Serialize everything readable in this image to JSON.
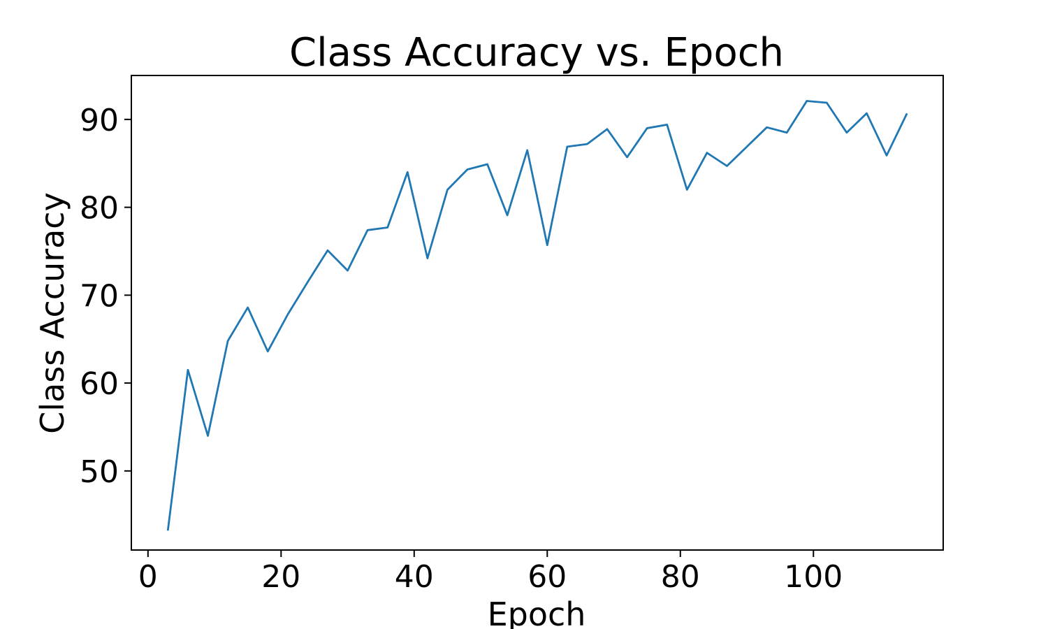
{
  "chart_data": {
    "type": "line",
    "title": "Class Accuracy vs. Epoch",
    "xlabel": "Epoch",
    "ylabel": "Class Accuracy",
    "xlim": [
      -2.5,
      119.5
    ],
    "ylim": [
      41,
      95
    ],
    "x_ticks": [
      0,
      20,
      40,
      60,
      80,
      100
    ],
    "y_ticks": [
      50,
      60,
      70,
      80,
      90
    ],
    "x_tick_labels": [
      "0",
      "20",
      "40",
      "60",
      "80",
      "100"
    ],
    "y_tick_labels": [
      "50",
      "60",
      "70",
      "80",
      "90"
    ],
    "grid": false,
    "legend": "none",
    "line_color": "#1f77b4",
    "series": [
      {
        "x": [
          3,
          6,
          9,
          12,
          15,
          18,
          21,
          24,
          27,
          30,
          33,
          36,
          39,
          42,
          45,
          48,
          51,
          54,
          57,
          60,
          63,
          66,
          69,
          72,
          75,
          78,
          81,
          84,
          87,
          90,
          93,
          96,
          99,
          102,
          105,
          108,
          111,
          114
        ],
        "values": [
          43.3,
          61.5,
          54.0,
          64.8,
          68.6,
          63.6,
          67.8,
          71.5,
          75.1,
          72.8,
          77.4,
          77.7,
          84.0,
          74.2,
          82.0,
          84.3,
          84.9,
          79.1,
          86.5,
          75.7,
          86.9,
          87.2,
          88.9,
          85.7,
          89.0,
          89.4,
          82.0,
          86.2,
          84.7,
          86.9,
          89.1,
          88.5,
          92.1,
          91.9,
          88.5,
          90.7,
          85.9,
          90.6
        ]
      }
    ]
  }
}
